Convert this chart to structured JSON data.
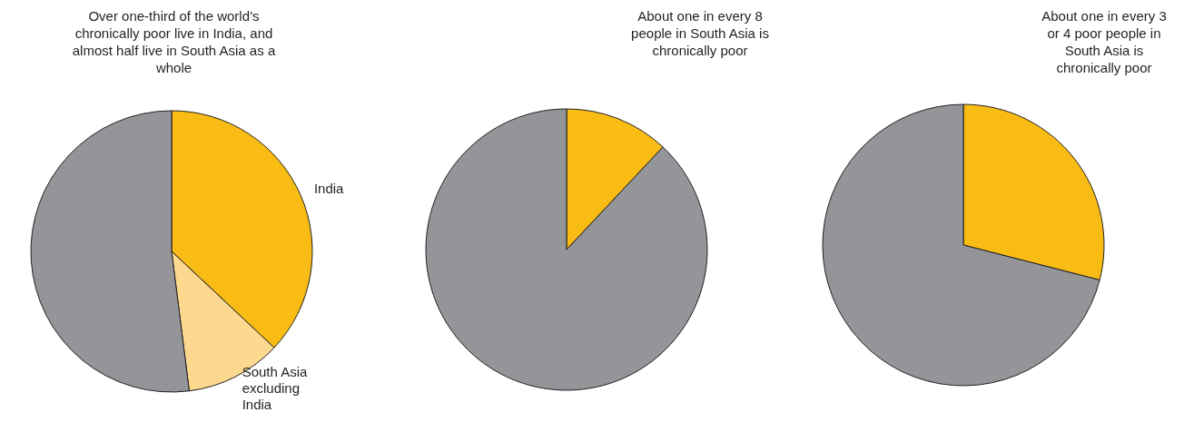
{
  "chart_data": [
    {
      "type": "pie",
      "title": "Over one-third of the world’s chronically poor live in India, and almost half live in South Asia as a whole",
      "categories": [
        "India",
        "South Asia excluding India",
        null
      ],
      "values": [
        37,
        11,
        52
      ],
      "colors": [
        "#f9bc15",
        "#fdd98f",
        "#939598"
      ]
    },
    {
      "type": "pie",
      "title": "About one in every 8 people in South Asia is chronically poor",
      "categories": [
        null,
        null
      ],
      "values": [
        12,
        88
      ],
      "colors": [
        "#f9bc15",
        "#939598"
      ]
    },
    {
      "type": "pie",
      "title": "About one in every 3 or 4 poor people in South Asia is chronically poor",
      "categories": [
        null,
        null
      ],
      "values": [
        29,
        71
      ],
      "colors": [
        "#f9bc15",
        "#939598"
      ]
    }
  ]
}
